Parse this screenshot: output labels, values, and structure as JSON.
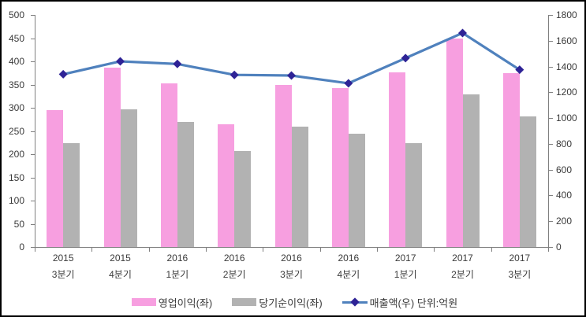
{
  "window": {
    "background": "#FFFFFF",
    "border_color": "#000000"
  },
  "chart_data": {
    "type": "combo-bar-line",
    "title": "",
    "grid": false,
    "legend_position": "bottom",
    "categories": [
      {
        "line1": "2015",
        "line2": "3분기"
      },
      {
        "line1": "2015",
        "line2": "4분기"
      },
      {
        "line1": "2016",
        "line2": "1분기"
      },
      {
        "line1": "2016",
        "line2": "2분기"
      },
      {
        "line1": "2016",
        "line2": "3분기"
      },
      {
        "line1": "2016",
        "line2": "4분기"
      },
      {
        "line1": "2017",
        "line2": "1분기"
      },
      {
        "line1": "2017",
        "line2": "2분기"
      },
      {
        "line1": "2017",
        "line2": "3분기"
      }
    ],
    "series": [
      {
        "key": "operating-profit",
        "name": "영업이익(좌)",
        "type": "bar",
        "axis": "left",
        "color": "#F79FE0",
        "values": [
          295,
          386,
          353,
          265,
          350,
          343,
          376,
          450,
          374
        ]
      },
      {
        "key": "net-profit",
        "name": "당기순이익(좌)",
        "type": "bar",
        "axis": "left",
        "color": "#B2B2B2",
        "values": [
          224,
          296,
          269,
          207,
          259,
          244,
          224,
          328,
          282
        ]
      },
      {
        "key": "revenue",
        "name": "매출액(우) 단위:억원",
        "type": "line",
        "axis": "right",
        "color": "#4F81BD",
        "marker_color": "#2E2396",
        "values": [
          1340,
          1440,
          1420,
          1335,
          1330,
          1270,
          1465,
          1660,
          1375
        ]
      }
    ],
    "left_axis": {
      "min": 0,
      "max": 500,
      "step": 50,
      "tick_labels": [
        "0",
        "50",
        "100",
        "150",
        "200",
        "250",
        "300",
        "350",
        "400",
        "450",
        "500"
      ]
    },
    "right_axis": {
      "min": 0,
      "max": 1800,
      "step": 200,
      "tick_labels": [
        "0",
        "200",
        "400",
        "600",
        "800",
        "1000",
        "1200",
        "1400",
        "1600",
        "1800"
      ]
    },
    "axis_color": "#808080",
    "text_color": "#3a3a3a"
  }
}
